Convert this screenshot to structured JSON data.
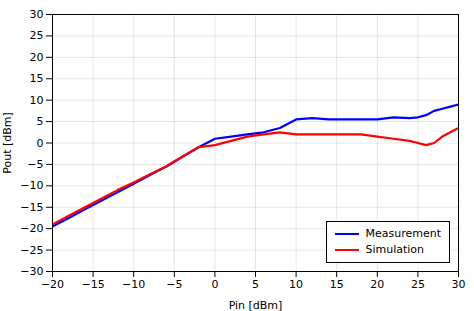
{
  "chart_data": {
    "type": "line",
    "xlabel": "Pin [dBm]",
    "ylabel": "Pout [dBm]",
    "x": [
      -20,
      -18,
      -16,
      -14,
      -12,
      -10,
      -8,
      -6,
      -4,
      -2,
      0,
      2,
      4,
      6,
      8,
      10,
      12,
      14,
      16,
      18,
      20,
      22,
      24,
      25,
      26,
      27,
      28,
      29,
      30
    ],
    "series": [
      {
        "name": "Measurement",
        "color": "#0000FF",
        "values": [
          -19.5,
          -17.5,
          -15.5,
          -13.5,
          -11.5,
          -9.5,
          -7.5,
          -5.5,
          -3.2,
          -1.0,
          1.0,
          1.5,
          2.0,
          2.5,
          3.5,
          5.5,
          5.8,
          5.5,
          5.5,
          5.5,
          5.5,
          6.0,
          5.8,
          6.0,
          6.5,
          7.5,
          8.0,
          8.5,
          9.0
        ]
      },
      {
        "name": "Simulation",
        "color": "#FF0000",
        "values": [
          -19.0,
          -17.0,
          -15.0,
          -13.0,
          -11.0,
          -9.2,
          -7.3,
          -5.5,
          -3.2,
          -1.0,
          -0.5,
          0.5,
          1.5,
          2.0,
          2.5,
          2.0,
          2.0,
          2.0,
          2.0,
          2.0,
          1.5,
          1.0,
          0.5,
          0.0,
          -0.5,
          0.0,
          1.5,
          2.5,
          3.5
        ]
      }
    ],
    "xlim": [
      -20,
      30
    ],
    "ylim": [
      -30,
      30
    ],
    "xticks": [
      -20,
      -15,
      -10,
      -5,
      0,
      5,
      10,
      15,
      20,
      25,
      30
    ],
    "yticks": [
      -30,
      -25,
      -20,
      -15,
      -10,
      -5,
      0,
      5,
      10,
      15,
      20,
      25,
      30
    ],
    "grid": true,
    "legend": "lower right"
  }
}
